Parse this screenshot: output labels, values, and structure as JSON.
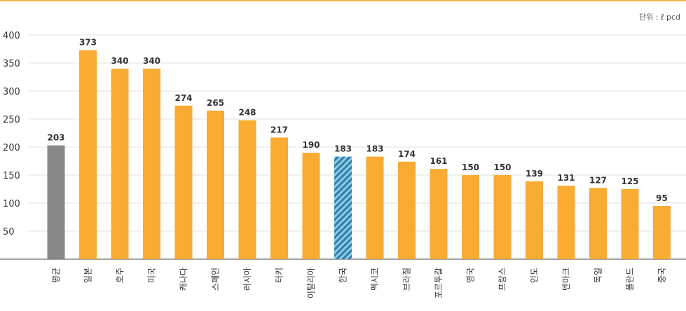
{
  "unit_label": "단위 : ℓ pcd",
  "colors": {
    "default": "#f9ab32",
    "average": "#888888",
    "highlight": "#2f7fa8",
    "highlight_bg": "#8ecbe6"
  },
  "chart_data": {
    "type": "bar",
    "categories": [
      "평균",
      "일본",
      "호주",
      "미국",
      "캐나다",
      "스페인",
      "러시아",
      "터키",
      "이탈리아",
      "한국",
      "멕시코",
      "브라질",
      "포르투갈",
      "영국",
      "프랑스",
      "인도",
      "덴마크",
      "독일",
      "폴란드",
      "중국"
    ],
    "values": [
      203,
      373,
      340,
      340,
      274,
      265,
      248,
      217,
      190,
      183,
      183,
      174,
      161,
      150,
      150,
      139,
      131,
      127,
      125,
      95
    ],
    "bar_styles": [
      "average",
      "default",
      "default",
      "default",
      "default",
      "default",
      "default",
      "default",
      "default",
      "highlight",
      "default",
      "default",
      "default",
      "default",
      "default",
      "default",
      "default",
      "default",
      "default",
      "default"
    ],
    "yticks": [
      50,
      100,
      150,
      200,
      250,
      300,
      350,
      400
    ],
    "ylim": [
      0,
      400
    ],
    "grid": true,
    "title": "",
    "xlabel": "",
    "ylabel": ""
  }
}
